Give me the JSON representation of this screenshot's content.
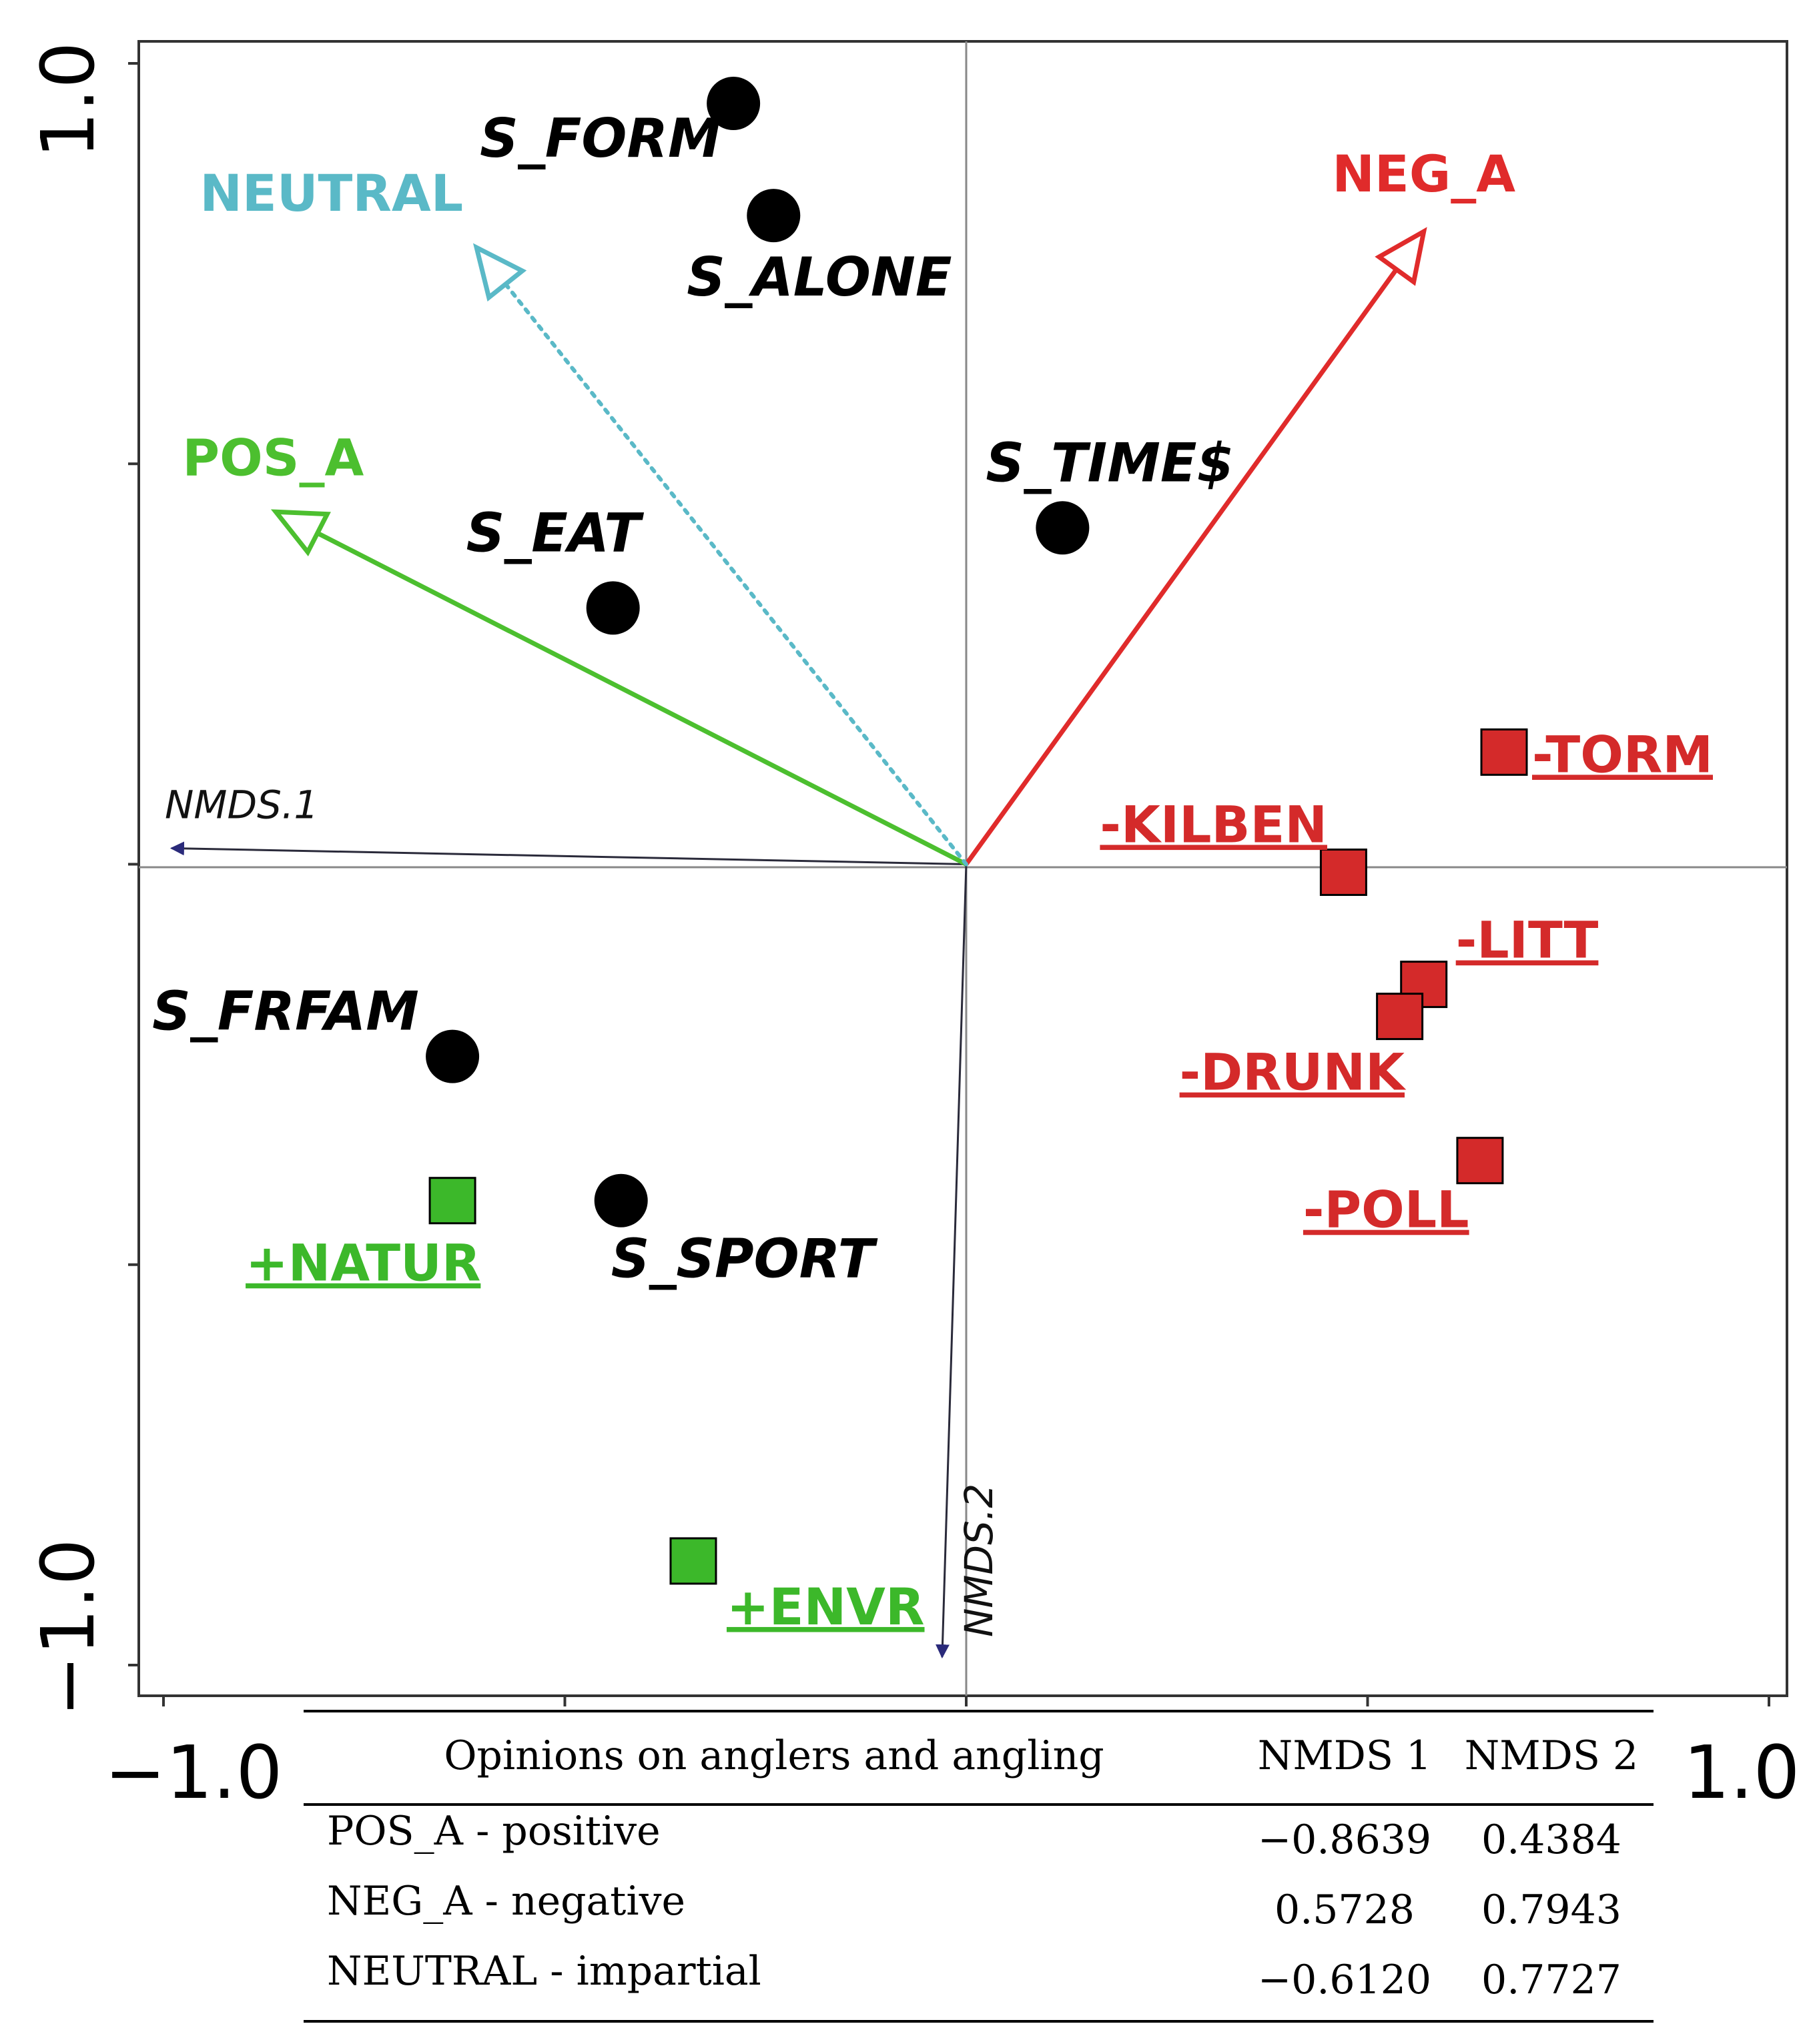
{
  "chart_data": {
    "type": "scatter",
    "xlim": [
      -1.0,
      1.0
    ],
    "ylim": [
      -1.0,
      1.0
    ],
    "x_tick_labels": [
      "−1.0",
      "1.0"
    ],
    "y_tick_labels": [
      "1.0",
      "−1.0"
    ],
    "axis_vectors": [
      {
        "label": "NMDS.1",
        "x": -0.99,
        "y": 0.02
      },
      {
        "label": "NMDS.2",
        "x": -0.03,
        "y": -0.99
      }
    ],
    "points": [
      {
        "label": "S_FORM",
        "x": -0.29,
        "y": 0.95
      },
      {
        "label": "S_ALONE",
        "x": -0.24,
        "y": 0.81
      },
      {
        "label": "S_TIME$",
        "x": 0.12,
        "y": 0.42
      },
      {
        "label": "S_EAT",
        "x": -0.44,
        "y": 0.32
      },
      {
        "label": "S_FRFAM",
        "x": -0.64,
        "y": -0.24
      },
      {
        "label": "S_SPORT",
        "x": -0.43,
        "y": -0.42
      }
    ],
    "squares": [
      {
        "label": "-TORM",
        "x": 0.67,
        "y": 0.14,
        "color": "#d42a2a",
        "text_color": "#d42a2a"
      },
      {
        "label": "-KILBEN",
        "x": 0.47,
        "y": -0.01,
        "color": "#d42a2a",
        "text_color": "#d42a2a"
      },
      {
        "label": "-LITT",
        "x": 0.57,
        "y": -0.15,
        "color": "#d42a2a",
        "text_color": "#d42a2a"
      },
      {
        "label": "-DRUNK",
        "x": 0.54,
        "y": -0.19,
        "color": "#d42a2a",
        "text_color": "#d42a2a"
      },
      {
        "label": "-POLL",
        "x": 0.64,
        "y": -0.37,
        "color": "#d42a2a",
        "text_color": "#d42a2a"
      },
      {
        "label": "+NATUR",
        "x": -0.64,
        "y": -0.42,
        "color": "#3cb82a",
        "text_color": "#3cb82a"
      },
      {
        "label": "+ENVR",
        "x": -0.34,
        "y": -0.87,
        "color": "#3cb82a",
        "text_color": "#3cb82a"
      }
    ],
    "vectors": [
      {
        "label": "POS_A",
        "x": -0.86,
        "y": 0.44,
        "color": "#4cbf2f",
        "style": "solid"
      },
      {
        "label": "NEG_A",
        "x": 0.57,
        "y": 0.79,
        "color": "#e02b2b",
        "style": "solid"
      },
      {
        "label": "NEUTRAL",
        "x": -0.61,
        "y": 0.77,
        "color": "#5ab9c7",
        "style": "dotted"
      }
    ],
    "table": {
      "columns": [
        "Opinions on anglers and angling",
        "NMDS 1",
        "NMDS 2"
      ],
      "rows": [
        [
          "POS_A - positive",
          "−0.8639",
          "0.4384"
        ],
        [
          "NEG_A - negative",
          "0.5728",
          "0.7943"
        ],
        [
          "NEUTRAL - impartial",
          "−0.6120",
          "0.7727"
        ]
      ]
    }
  }
}
